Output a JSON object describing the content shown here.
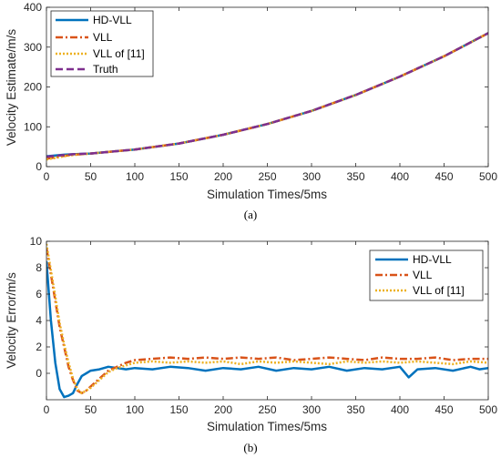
{
  "colors": {
    "hd_vll": "#0072BD",
    "vll": "#D95319",
    "vll11": "#EDB120",
    "truth": "#7E2F8E",
    "axis": "#262626"
  },
  "chart_data": [
    {
      "type": "line",
      "caption": "(a)",
      "xlabel": "Simulation Times/5ms",
      "ylabel": "Velocity Estimate/m/s",
      "xlim": [
        0,
        500
      ],
      "ylim": [
        0,
        400
      ],
      "xticks": [
        "0",
        "50",
        "100",
        "150",
        "200",
        "250",
        "300",
        "350",
        "400",
        "450",
        "500"
      ],
      "yticks": [
        "0",
        "100",
        "200",
        "300",
        "400"
      ],
      "legend_position": "top-left",
      "grid": false,
      "series": [
        {
          "name": "HD-VLL",
          "style": "solid",
          "x": [
            0,
            10,
            20,
            30,
            50,
            100,
            150,
            200,
            250,
            300,
            350,
            400,
            450,
            500
          ],
          "y": [
            26,
            28,
            30,
            31,
            33,
            43,
            58,
            80,
            107,
            140,
            180,
            226,
            277,
            335
          ]
        },
        {
          "name": "VLL",
          "style": "dashdot",
          "x": [
            0,
            10,
            20,
            30,
            50,
            100,
            150,
            200,
            250,
            300,
            350,
            400,
            450,
            500
          ],
          "y": [
            20,
            23,
            27,
            30,
            33,
            43,
            58,
            80,
            107,
            140,
            180,
            226,
            277,
            335
          ]
        },
        {
          "name": "VLL of [11]",
          "style": "dotted",
          "x": [
            0,
            10,
            20,
            30,
            50,
            100,
            150,
            200,
            250,
            300,
            350,
            400,
            450,
            500
          ],
          "y": [
            18,
            22,
            26,
            29,
            33,
            43,
            58,
            80,
            107,
            140,
            180,
            226,
            277,
            335
          ]
        },
        {
          "name": "Truth",
          "style": "dashed",
          "x": [
            0,
            10,
            20,
            30,
            50,
            100,
            150,
            200,
            250,
            300,
            350,
            400,
            450,
            500
          ],
          "y": [
            25,
            27,
            29,
            31,
            33,
            43,
            58,
            80,
            107,
            140,
            180,
            226,
            277,
            335
          ]
        }
      ]
    },
    {
      "type": "line",
      "caption": "(b)",
      "xlabel": "Simulation Times/5ms",
      "ylabel": "Velocity Error/m/s",
      "xlim": [
        0,
        500
      ],
      "ylim": [
        -2,
        10
      ],
      "xticks": [
        "0",
        "50",
        "100",
        "150",
        "200",
        "250",
        "300",
        "350",
        "400",
        "450",
        "500"
      ],
      "yticks": [
        "0",
        "2",
        "4",
        "6",
        "8",
        "10"
      ],
      "legend_position": "top-right",
      "grid": false,
      "series": [
        {
          "name": "HD-VLL",
          "style": "solid",
          "x": [
            0,
            5,
            10,
            15,
            20,
            25,
            30,
            35,
            40,
            45,
            50,
            60,
            70,
            80,
            90,
            100,
            120,
            140,
            160,
            180,
            200,
            220,
            240,
            260,
            280,
            300,
            320,
            340,
            360,
            380,
            400,
            410,
            420,
            440,
            460,
            480,
            490,
            500
          ],
          "y": [
            8.5,
            4.0,
            0.8,
            -1.2,
            -1.8,
            -1.7,
            -1.5,
            -0.8,
            -0.2,
            0.0,
            0.2,
            0.3,
            0.5,
            0.4,
            0.3,
            0.4,
            0.3,
            0.5,
            0.4,
            0.2,
            0.4,
            0.3,
            0.5,
            0.2,
            0.4,
            0.3,
            0.5,
            0.2,
            0.4,
            0.3,
            0.5,
            -0.3,
            0.3,
            0.4,
            0.2,
            0.5,
            0.3,
            0.4
          ]
        },
        {
          "name": "VLL",
          "style": "dashdot",
          "x": [
            0,
            5,
            10,
            15,
            20,
            25,
            30,
            35,
            40,
            45,
            50,
            60,
            70,
            80,
            90,
            100,
            120,
            140,
            160,
            180,
            200,
            220,
            240,
            260,
            280,
            300,
            320,
            340,
            360,
            380,
            400,
            420,
            440,
            460,
            480,
            500
          ],
          "y": [
            9.5,
            7.5,
            5.5,
            3.5,
            2.0,
            0.5,
            -0.5,
            -1.3,
            -1.5,
            -1.3,
            -1.0,
            -0.4,
            0.2,
            0.5,
            0.8,
            1.0,
            1.1,
            1.2,
            1.1,
            1.2,
            1.1,
            1.2,
            1.1,
            1.2,
            1.0,
            1.1,
            1.2,
            1.1,
            1.0,
            1.2,
            1.1,
            1.1,
            1.2,
            1.0,
            1.1,
            1.1
          ]
        },
        {
          "name": "VLL of [11]",
          "style": "dotted",
          "x": [
            0,
            5,
            10,
            15,
            20,
            25,
            30,
            35,
            40,
            45,
            50,
            60,
            70,
            80,
            90,
            100,
            120,
            140,
            160,
            180,
            200,
            220,
            240,
            260,
            280,
            300,
            320,
            340,
            360,
            380,
            400,
            420,
            440,
            460,
            480,
            500
          ],
          "y": [
            9.8,
            7.8,
            5.8,
            3.8,
            2.2,
            0.8,
            -0.4,
            -1.2,
            -1.5,
            -1.3,
            -1.1,
            -0.5,
            0.1,
            0.4,
            0.6,
            0.8,
            0.9,
            0.8,
            0.9,
            0.8,
            0.9,
            0.7,
            0.9,
            0.8,
            0.9,
            0.8,
            0.7,
            0.9,
            0.8,
            0.9,
            0.8,
            0.9,
            0.8,
            0.7,
            0.9,
            0.8
          ]
        }
      ]
    }
  ]
}
